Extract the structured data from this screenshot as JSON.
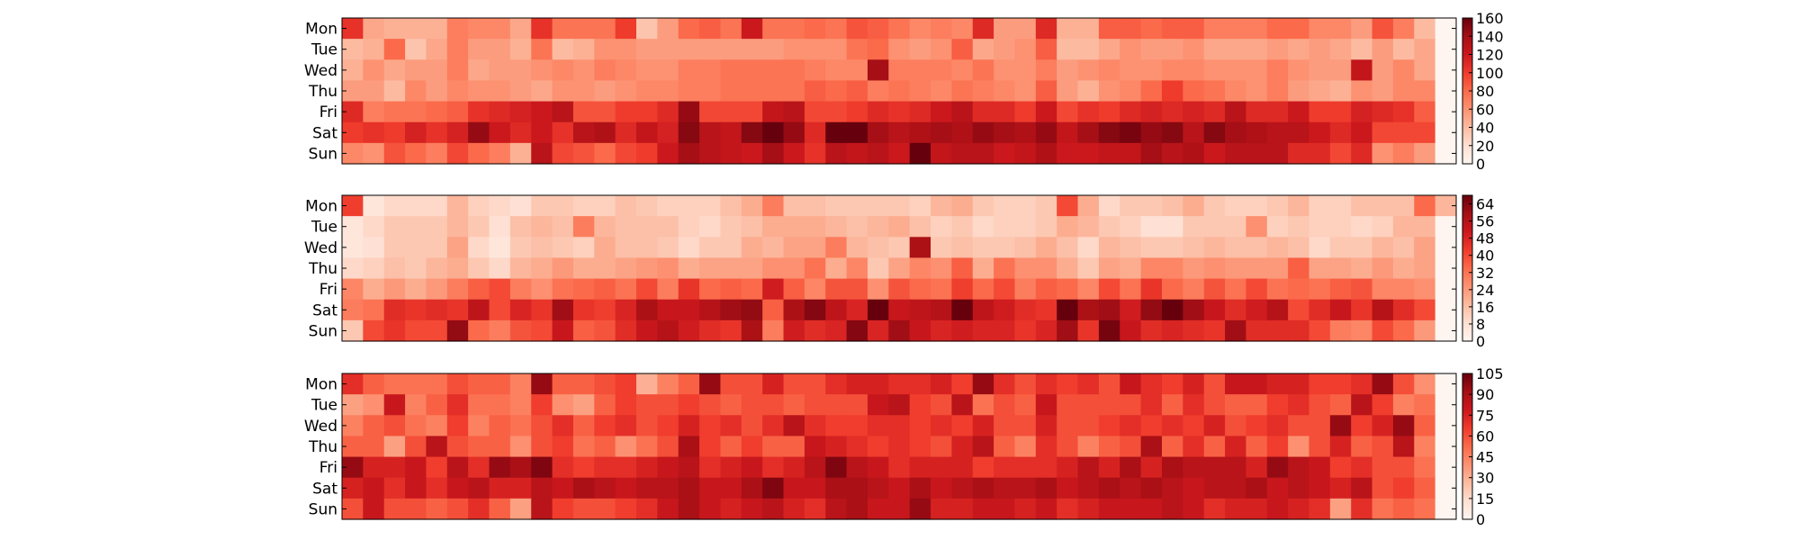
{
  "chart_data": [
    {
      "type": "heatmap",
      "title": "",
      "xlabel": "",
      "ylabel": "",
      "rows": [
        "Mon",
        "Tue",
        "Wed",
        "Thu",
        "Fri",
        "Sat",
        "Sun"
      ],
      "n_columns": 53,
      "colorbar": {
        "min": 0,
        "max": 160,
        "ticks": [
          0,
          20,
          40,
          60,
          80,
          100,
          120,
          140,
          160
        ]
      },
      "colormap": "Reds",
      "values": [
        [
          105,
          50,
          45,
          45,
          45,
          70,
          65,
          65,
          50,
          105,
          75,
          75,
          75,
          100,
          35,
          55,
          80,
          85,
          75,
          120,
          75,
          75,
          80,
          75,
          90,
          85,
          75,
          65,
          70,
          65,
          110,
          55,
          55,
          110,
          45,
          45,
          85,
          85,
          80,
          85,
          85,
          70,
          70,
          70,
          80,
          80,
          65,
          65,
          55,
          90,
          70,
          40,
          0
        ],
        [
          40,
          45,
          80,
          35,
          50,
          70,
          55,
          55,
          45,
          75,
          40,
          45,
          60,
          60,
          55,
          55,
          55,
          55,
          55,
          55,
          55,
          60,
          60,
          60,
          75,
          80,
          60,
          55,
          60,
          85,
          50,
          55,
          60,
          85,
          40,
          40,
          50,
          60,
          55,
          55,
          60,
          50,
          50,
          50,
          55,
          50,
          55,
          50,
          40,
          55,
          40,
          50,
          0
        ],
        [
          45,
          60,
          50,
          55,
          55,
          70,
          50,
          55,
          55,
          60,
          65,
          60,
          70,
          65,
          60,
          60,
          70,
          70,
          75,
          75,
          75,
          75,
          70,
          65,
          65,
          140,
          70,
          70,
          70,
          65,
          75,
          60,
          60,
          70,
          55,
          60,
          65,
          60,
          60,
          65,
          65,
          60,
          60,
          60,
          70,
          60,
          55,
          55,
          125,
          55,
          65,
          50,
          0
        ],
        [
          55,
          55,
          40,
          65,
          55,
          65,
          60,
          60,
          55,
          50,
          60,
          60,
          55,
          60,
          65,
          65,
          70,
          70,
          75,
          75,
          75,
          75,
          85,
          80,
          85,
          70,
          75,
          70,
          65,
          75,
          70,
          65,
          60,
          85,
          55,
          45,
          60,
          65,
          80,
          100,
          80,
          75,
          65,
          60,
          70,
          55,
          50,
          45,
          60,
          55,
          65,
          65,
          0
        ],
        [
          110,
          70,
          75,
          75,
          80,
          85,
          105,
          110,
          115,
          120,
          130,
          90,
          90,
          100,
          100,
          110,
          145,
          95,
          95,
          95,
          125,
          130,
          95,
          95,
          100,
          110,
          105,
          110,
          120,
          130,
          110,
          110,
          100,
          120,
          95,
          105,
          100,
          110,
          115,
          110,
          115,
          110,
          130,
          110,
          110,
          120,
          100,
          100,
          115,
          110,
          105,
          85,
          0
        ],
        [
          100,
          105,
          100,
          115,
          105,
          115,
          145,
          120,
          110,
          120,
          105,
          130,
          135,
          110,
          125,
          115,
          150,
          130,
          125,
          150,
          170,
          145,
          110,
          165,
          165,
          140,
          130,
          135,
          140,
          135,
          145,
          140,
          135,
          145,
          125,
          140,
          150,
          155,
          145,
          150,
          130,
          150,
          140,
          135,
          130,
          130,
          120,
          110,
          120,
          95,
          95,
          95,
          0
        ],
        [
          65,
          60,
          90,
          80,
          70,
          95,
          80,
          70,
          45,
          130,
          95,
          90,
          80,
          95,
          100,
          120,
          140,
          130,
          125,
          120,
          140,
          120,
          105,
          130,
          125,
          130,
          120,
          165,
          125,
          130,
          130,
          120,
          125,
          135,
          120,
          120,
          125,
          125,
          140,
          130,
          135,
          120,
          130,
          130,
          130,
          110,
          110,
          95,
          110,
          60,
          70,
          55,
          0
        ]
      ]
    },
    {
      "type": "heatmap",
      "title": "",
      "xlabel": "",
      "ylabel": "",
      "rows": [
        "Mon",
        "Tue",
        "Wed",
        "Thu",
        "Fri",
        "Sat",
        "Sun"
      ],
      "n_columns": 53,
      "colorbar": {
        "min": 0,
        "max": 68,
        "ticks": [
          0,
          8,
          16,
          24,
          32,
          40,
          48,
          56,
          64
        ]
      },
      "colormap": "Reds",
      "values": [
        [
          42,
          6,
          10,
          10,
          10,
          18,
          12,
          10,
          8,
          14,
          14,
          12,
          12,
          16,
          14,
          12,
          12,
          12,
          16,
          20,
          30,
          16,
          16,
          14,
          14,
          14,
          14,
          12,
          18,
          20,
          14,
          12,
          12,
          14,
          40,
          20,
          10,
          14,
          14,
          16,
          20,
          14,
          12,
          12,
          14,
          18,
          12,
          12,
          16,
          16,
          16,
          34,
          18
        ],
        [
          6,
          10,
          14,
          14,
          14,
          18,
          14,
          8,
          16,
          18,
          16,
          30,
          18,
          16,
          16,
          16,
          12,
          10,
          14,
          16,
          20,
          20,
          20,
          18,
          16,
          18,
          20,
          16,
          12,
          14,
          10,
          12,
          12,
          14,
          20,
          18,
          14,
          12,
          8,
          8,
          14,
          14,
          14,
          26,
          12,
          14,
          12,
          12,
          10,
          12,
          18,
          18,
          0
        ],
        [
          6,
          8,
          14,
          14,
          14,
          22,
          10,
          6,
          14,
          16,
          14,
          12,
          20,
          16,
          16,
          14,
          10,
          14,
          14,
          20,
          18,
          22,
          22,
          30,
          18,
          16,
          14,
          58,
          14,
          16,
          14,
          14,
          16,
          20,
          16,
          10,
          18,
          16,
          14,
          14,
          16,
          18,
          16,
          16,
          18,
          16,
          10,
          14,
          14,
          18,
          16,
          22,
          0
        ],
        [
          10,
          12,
          16,
          14,
          18,
          20,
          14,
          10,
          18,
          20,
          24,
          20,
          20,
          22,
          24,
          26,
          20,
          22,
          22,
          22,
          26,
          26,
          32,
          20,
          28,
          14,
          22,
          28,
          26,
          36,
          20,
          32,
          26,
          26,
          20,
          14,
          22,
          20,
          28,
          28,
          24,
          26,
          24,
          24,
          24,
          36,
          22,
          22,
          20,
          24,
          20,
          22,
          0
        ],
        [
          28,
          20,
          24,
          20,
          24,
          30,
          36,
          40,
          30,
          26,
          32,
          34,
          36,
          32,
          40,
          30,
          44,
          34,
          36,
          34,
          50,
          36,
          28,
          38,
          38,
          26,
          38,
          34,
          32,
          42,
          34,
          40,
          30,
          36,
          34,
          28,
          40,
          32,
          44,
          34,
          30,
          38,
          32,
          40,
          32,
          34,
          32,
          36,
          38,
          28,
          28,
          26,
          0
        ],
        [
          30,
          32,
          46,
          44,
          46,
          44,
          54,
          40,
          48,
          44,
          60,
          44,
          42,
          48,
          58,
          52,
          52,
          56,
          60,
          62,
          36,
          58,
          64,
          54,
          48,
          68,
          52,
          54,
          56,
          68,
          54,
          50,
          46,
          44,
          68,
          58,
          60,
          50,
          62,
          68,
          60,
          52,
          46,
          50,
          56,
          40,
          46,
          52,
          44,
          56,
          46,
          40,
          0
        ],
        [
          14,
          40,
          44,
          40,
          40,
          62,
          34,
          30,
          38,
          40,
          52,
          36,
          38,
          46,
          52,
          56,
          50,
          46,
          44,
          58,
          30,
          50,
          46,
          48,
          64,
          48,
          60,
          52,
          48,
          50,
          48,
          48,
          44,
          48,
          60,
          44,
          66,
          52,
          46,
          48,
          46,
          44,
          60,
          46,
          46,
          46,
          40,
          30,
          28,
          40,
          34,
          24,
          0
        ]
      ]
    },
    {
      "type": "heatmap",
      "title": "",
      "xlabel": "",
      "ylabel": "",
      "rows": [
        "Mon",
        "Tue",
        "Wed",
        "Thu",
        "Fri",
        "Sat",
        "Sun"
      ],
      "n_columns": 53,
      "colorbar": {
        "min": 0,
        "max": 105,
        "ticks": [
          0,
          15,
          30,
          45,
          60,
          75,
          90,
          105
        ]
      },
      "colormap": "Reds",
      "values": [
        [
          70,
          55,
          50,
          50,
          50,
          60,
          55,
          55,
          45,
          95,
          55,
          55,
          60,
          65,
          30,
          45,
          55,
          95,
          60,
          60,
          75,
          60,
          60,
          70,
          75,
          75,
          70,
          70,
          75,
          65,
          95,
          70,
          60,
          70,
          65,
          70,
          60,
          80,
          70,
          65,
          75,
          60,
          80,
          80,
          75,
          75,
          65,
          65,
          70,
          95,
          60,
          40,
          0
        ],
        [
          35,
          40,
          80,
          45,
          55,
          70,
          50,
          50,
          45,
          65,
          40,
          35,
          55,
          65,
          60,
          60,
          65,
          60,
          55,
          60,
          60,
          55,
          60,
          60,
          60,
          80,
          85,
          65,
          60,
          85,
          50,
          60,
          55,
          80,
          60,
          60,
          60,
          60,
          70,
          55,
          70,
          60,
          55,
          55,
          65,
          70,
          60,
          55,
          85,
          65,
          45,
          50,
          0
        ],
        [
          45,
          55,
          60,
          50,
          45,
          65,
          45,
          55,
          50,
          60,
          70,
          55,
          65,
          70,
          60,
          65,
          75,
          65,
          70,
          60,
          70,
          85,
          70,
          65,
          65,
          70,
          70,
          65,
          70,
          65,
          75,
          60,
          60,
          75,
          60,
          60,
          65,
          70,
          65,
          70,
          65,
          75,
          60,
          65,
          70,
          60,
          60,
          95,
          65,
          75,
          95,
          55,
          0
        ],
        [
          55,
          55,
          35,
          60,
          85,
          60,
          55,
          55,
          40,
          60,
          65,
          50,
          55,
          40,
          50,
          60,
          90,
          65,
          55,
          65,
          55,
          55,
          80,
          75,
          70,
          65,
          70,
          65,
          60,
          75,
          85,
          55,
          45,
          70,
          60,
          45,
          55,
          60,
          90,
          55,
          70,
          55,
          75,
          55,
          65,
          40,
          60,
          75,
          55,
          60,
          85,
          45,
          0
        ],
        [
          95,
          75,
          75,
          80,
          65,
          85,
          70,
          95,
          90,
          100,
          70,
          65,
          70,
          70,
          75,
          80,
          85,
          70,
          75,
          80,
          70,
          75,
          85,
          100,
          85,
          80,
          70,
          75,
          75,
          75,
          65,
          70,
          70,
          70,
          75,
          85,
          75,
          90,
          75,
          90,
          85,
          85,
          85,
          75,
          95,
          85,
          80,
          65,
          70,
          60,
          60,
          50,
          0
        ],
        [
          75,
          80,
          70,
          80,
          70,
          80,
          85,
          75,
          75,
          85,
          80,
          90,
          85,
          80,
          85,
          85,
          90,
          80,
          80,
          90,
          100,
          80,
          80,
          90,
          90,
          85,
          80,
          90,
          80,
          85,
          90,
          85,
          85,
          90,
          80,
          85,
          90,
          85,
          90,
          85,
          80,
          85,
          85,
          90,
          80,
          85,
          80,
          75,
          85,
          60,
          65,
          55,
          0
        ],
        [
          60,
          80,
          60,
          60,
          55,
          60,
          70,
          55,
          35,
          85,
          65,
          60,
          60,
          65,
          70,
          80,
          90,
          80,
          75,
          80,
          85,
          75,
          70,
          85,
          90,
          80,
          80,
          95,
          75,
          75,
          80,
          80,
          75,
          80,
          70,
          75,
          80,
          80,
          80,
          85,
          80,
          70,
          75,
          75,
          80,
          75,
          70,
          35,
          70,
          50,
          55,
          50,
          0
        ]
      ]
    }
  ]
}
